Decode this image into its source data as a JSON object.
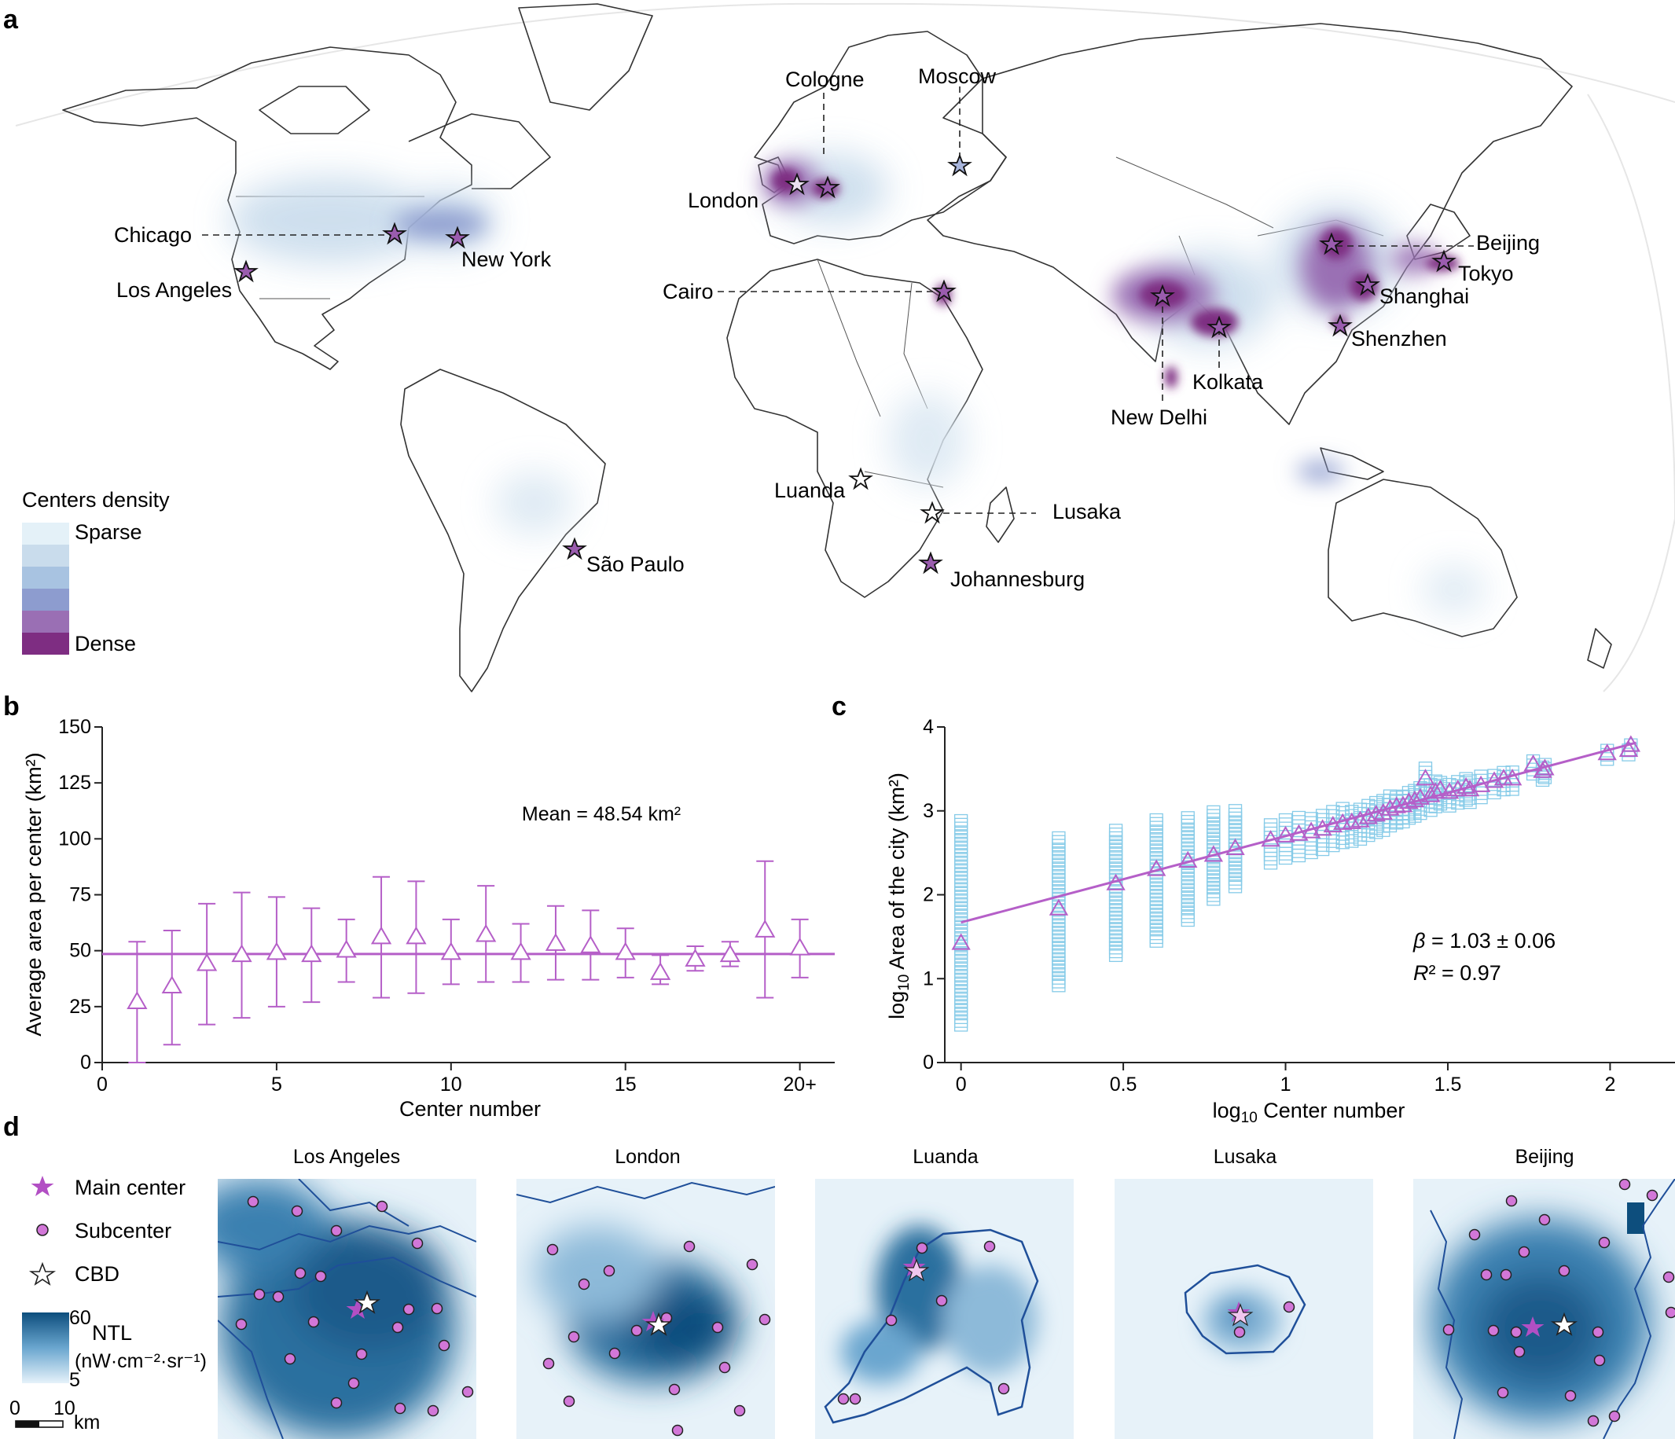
{
  "panels": {
    "a": "a",
    "b": "b",
    "c": "c",
    "d": "d"
  },
  "map": {
    "legend_title": "Centers density",
    "legend_low": "Sparse",
    "legend_high": "Dense",
    "legend_colors": [
      "#e4f1f8",
      "#c9dcec",
      "#a8c3e1",
      "#8d9ccf",
      "#9a6fb4",
      "#7e2d82"
    ],
    "cities": [
      {
        "name": "Chicago"
      },
      {
        "name": "New York"
      },
      {
        "name": "Los Angeles"
      },
      {
        "name": "São Paulo"
      },
      {
        "name": "Cologne"
      },
      {
        "name": "Moscow"
      },
      {
        "name": "London"
      },
      {
        "name": "Cairo"
      },
      {
        "name": "Luanda"
      },
      {
        "name": "Lusaka"
      },
      {
        "name": "Johannesburg"
      },
      {
        "name": "Beijing"
      },
      {
        "name": "Tokyo"
      },
      {
        "name": "Shanghai"
      },
      {
        "name": "Shenzhen"
      },
      {
        "name": "Kolkata"
      },
      {
        "name": "New Delhi"
      }
    ]
  },
  "chart_data": [
    {
      "type": "scatter",
      "panel": "b",
      "xlabel": "Center number",
      "ylabel": "Average area per center (km²)",
      "xlim": [
        0,
        21
      ],
      "ylim": [
        0,
        150
      ],
      "x_ticks": [
        "0",
        "5",
        "10",
        "15",
        "20+"
      ],
      "y_ticks": [
        "0",
        "25",
        "50",
        "75",
        "100",
        "125",
        "150"
      ],
      "annotation": "Mean = 48.54 km²",
      "mean": 48.54,
      "color": "#b55fc8",
      "points": [
        {
          "x": 1,
          "y": 27,
          "lo": 0,
          "hi": 54
        },
        {
          "x": 2,
          "y": 34,
          "lo": 8,
          "hi": 59
        },
        {
          "x": 3,
          "y": 44,
          "lo": 17,
          "hi": 71
        },
        {
          "x": 4,
          "y": 48,
          "lo": 20,
          "hi": 76
        },
        {
          "x": 5,
          "y": 49,
          "lo": 25,
          "hi": 74
        },
        {
          "x": 6,
          "y": 48,
          "lo": 27,
          "hi": 69
        },
        {
          "x": 7,
          "y": 50,
          "lo": 36,
          "hi": 64
        },
        {
          "x": 8,
          "y": 56,
          "lo": 29,
          "hi": 83
        },
        {
          "x": 9,
          "y": 56,
          "lo": 31,
          "hi": 81
        },
        {
          "x": 10,
          "y": 49,
          "lo": 35,
          "hi": 64
        },
        {
          "x": 11,
          "y": 57,
          "lo": 36,
          "hi": 79
        },
        {
          "x": 12,
          "y": 49,
          "lo": 36,
          "hi": 62
        },
        {
          "x": 13,
          "y": 53,
          "lo": 37,
          "hi": 70
        },
        {
          "x": 14,
          "y": 52,
          "lo": 37,
          "hi": 68
        },
        {
          "x": 15,
          "y": 49,
          "lo": 38,
          "hi": 60
        },
        {
          "x": 16,
          "y": 40,
          "lo": 35,
          "hi": 48
        },
        {
          "x": 17,
          "y": 46,
          "lo": 41,
          "hi": 52
        },
        {
          "x": 18,
          "y": 48,
          "lo": 43,
          "hi": 54
        },
        {
          "x": 19,
          "y": 59,
          "lo": 29,
          "hi": 90
        },
        {
          "x": 20,
          "y": 51,
          "lo": 38,
          "hi": 64
        }
      ]
    },
    {
      "type": "scatter",
      "panel": "c",
      "xlabel": "log10 Center number",
      "ylabel": "log10 Area of the city (km²)",
      "xlim": [
        -0.05,
        2.2
      ],
      "ylim": [
        0,
        4
      ],
      "x_ticks": [
        0,
        0.5,
        1,
        1.5,
        2
      ],
      "y_ticks": [
        0,
        1,
        2,
        3,
        4
      ],
      "fit": {
        "intercept": 1.67,
        "slope": 1.03,
        "x_range": [
          0,
          2.08
        ]
      },
      "stats": {
        "beta": "1.03 ± 0.06",
        "r2": "0.97"
      },
      "cloud_color": "#86cbe8",
      "color": "#b55fc8",
      "columns": [
        {
          "x": 0,
          "lo": 0.45,
          "hi": 2.92
        },
        {
          "x": 0.301,
          "lo": 0.92,
          "hi": 2.68
        },
        {
          "x": 0.477,
          "lo": 1.28,
          "hi": 2.78
        },
        {
          "x": 0.602,
          "lo": 1.45,
          "hi": 2.9
        },
        {
          "x": 0.699,
          "lo": 1.7,
          "hi": 2.95
        },
        {
          "x": 0.778,
          "lo": 1.95,
          "hi": 3.0
        },
        {
          "x": 0.845,
          "lo": 2.1,
          "hi": 3.0
        }
      ],
      "means": [
        {
          "x": 0,
          "y": 1.42
        },
        {
          "x": 0.301,
          "y": 1.83
        },
        {
          "x": 0.477,
          "y": 2.13
        },
        {
          "x": 0.602,
          "y": 2.3
        },
        {
          "x": 0.699,
          "y": 2.4
        },
        {
          "x": 0.778,
          "y": 2.47
        },
        {
          "x": 0.845,
          "y": 2.55
        },
        {
          "x": 0.954,
          "y": 2.65
        },
        {
          "x": 1.0,
          "y": 2.7
        },
        {
          "x": 1.041,
          "y": 2.72
        },
        {
          "x": 1.079,
          "y": 2.75
        },
        {
          "x": 1.114,
          "y": 2.78
        },
        {
          "x": 1.146,
          "y": 2.82
        },
        {
          "x": 1.176,
          "y": 2.85
        },
        {
          "x": 1.204,
          "y": 2.86
        },
        {
          "x": 1.23,
          "y": 2.88
        },
        {
          "x": 1.255,
          "y": 2.92
        },
        {
          "x": 1.279,
          "y": 2.95
        },
        {
          "x": 1.301,
          "y": 2.97
        },
        {
          "x": 1.322,
          "y": 3.02
        },
        {
          "x": 1.342,
          "y": 3.05
        },
        {
          "x": 1.362,
          "y": 3.06
        },
        {
          "x": 1.38,
          "y": 3.1
        },
        {
          "x": 1.398,
          "y": 3.12
        },
        {
          "x": 1.415,
          "y": 3.15
        },
        {
          "x": 1.431,
          "y": 3.38
        },
        {
          "x": 1.447,
          "y": 3.18
        },
        {
          "x": 1.462,
          "y": 3.22
        },
        {
          "x": 1.477,
          "y": 3.25
        },
        {
          "x": 1.505,
          "y": 3.22
        },
        {
          "x": 1.531,
          "y": 3.25
        },
        {
          "x": 1.556,
          "y": 3.28
        },
        {
          "x": 1.568,
          "y": 3.25
        },
        {
          "x": 1.602,
          "y": 3.3
        },
        {
          "x": 1.643,
          "y": 3.35
        },
        {
          "x": 1.672,
          "y": 3.38
        },
        {
          "x": 1.699,
          "y": 3.38
        },
        {
          "x": 1.763,
          "y": 3.55
        },
        {
          "x": 1.792,
          "y": 3.47
        },
        {
          "x": 1.799,
          "y": 3.5
        },
        {
          "x": 1.991,
          "y": 3.68
        },
        {
          "x": 2.057,
          "y": 3.72
        },
        {
          "x": 2.064,
          "y": 3.78
        }
      ]
    }
  ],
  "city_maps": {
    "legend": {
      "main_center": "Main center",
      "subcenter": "Subcenter",
      "cbd": "CBD",
      "ntl_label": "NTL",
      "ntl_unit": "(nW·cm⁻²·sr⁻¹)",
      "ntl_max": "60",
      "ntl_min": "5",
      "scale_zero": "0",
      "scale_ten": "10",
      "scale_unit": "km"
    },
    "maps": [
      {
        "title": "Los Angeles"
      },
      {
        "title": "London"
      },
      {
        "title": "Luanda"
      },
      {
        "title": "Lusaka"
      },
      {
        "title": "Beijing"
      }
    ]
  }
}
